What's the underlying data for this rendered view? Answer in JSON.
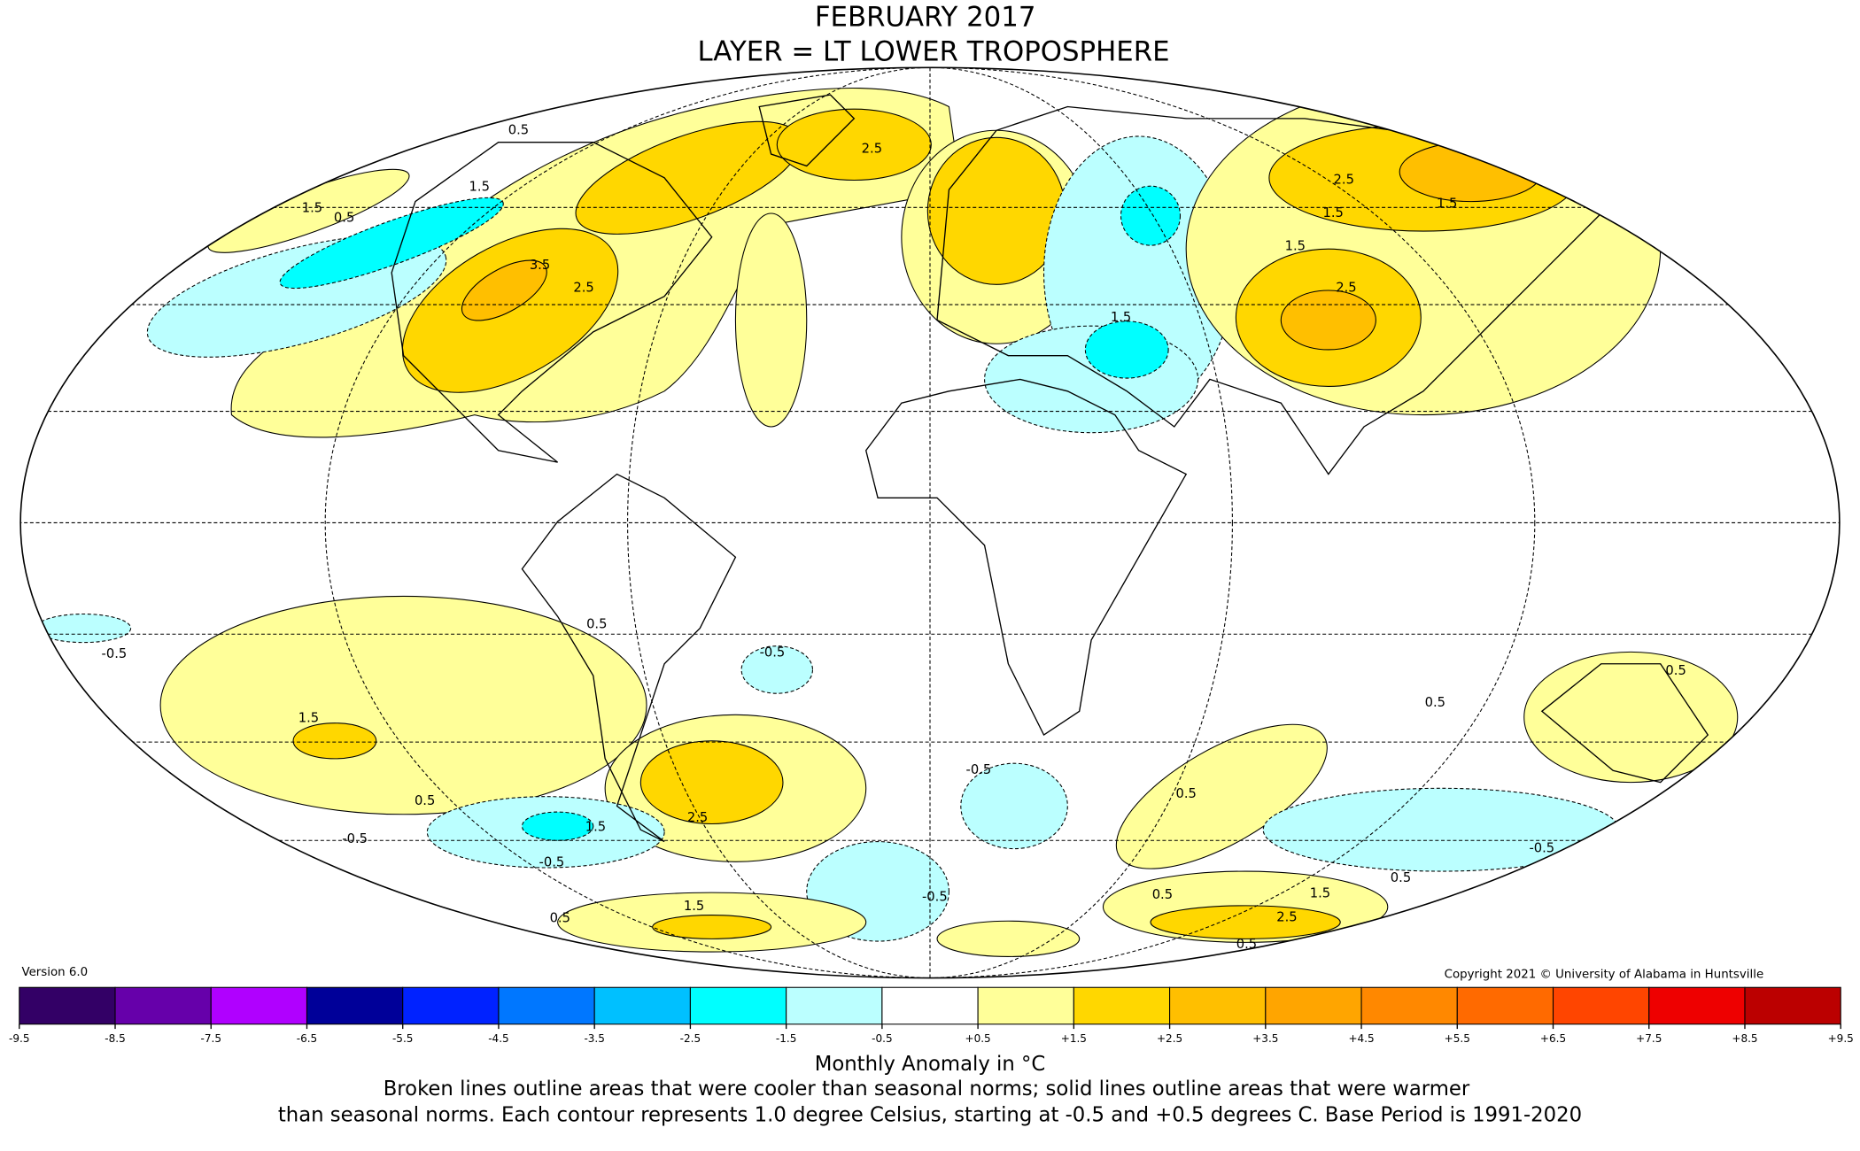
{
  "header": {
    "title_line1": "FEBRUARY 2017",
    "title_line2": "LAYER = LT LOWER TROPOSPHERE"
  },
  "map": {
    "contour_labels": [
      "3.5",
      "2.5",
      "2.5",
      "1.5",
      "0.5",
      "0.5",
      "1.5",
      "2.5",
      "1.5",
      "1.5",
      "2.5",
      "1.5",
      "2.5",
      "1.5",
      "-0.5",
      "-0.5",
      "1.5",
      "0.5",
      "-0.5",
      "-0.5",
      "1.5",
      "0.5",
      "-0.5",
      "0.5",
      "1.5",
      "0.5",
      "-0.5",
      "0.5",
      "0.5",
      "2.5",
      "1.5",
      "0.5",
      "0.5",
      "-0.5",
      "0.5"
    ]
  },
  "version": "Version 6.0",
  "copyright": "Copyright 2021 © University of Alabama in Huntsville",
  "colorbar": {
    "ticks": [
      -9.5,
      -8.5,
      -7.5,
      -6.5,
      -5.5,
      -4.5,
      -3.5,
      -2.5,
      -1.5,
      -0.5,
      {
        "value": 0.5,
        "label": "+0.5"
      },
      {
        "value": 1.5,
        "label": "+1.5"
      },
      {
        "value": 2.5,
        "label": "+2.5"
      },
      {
        "value": 3.5,
        "label": "+3.5"
      },
      {
        "value": 4.5,
        "label": "+4.5"
      },
      {
        "value": 5.5,
        "label": "+5.5"
      },
      {
        "value": 6.5,
        "label": "+6.5"
      },
      {
        "value": 7.5,
        "label": "+7.5"
      },
      {
        "value": 8.5,
        "label": "+8.5"
      },
      {
        "value": 9.5,
        "label": "+9.5"
      }
    ],
    "colors": [
      "#330066",
      "#6600aa",
      "#b000ff",
      "#000099",
      "#0022ff",
      "#0077ff",
      "#00c0ff",
      "#00ffff",
      "#bbffff",
      "#ffffff",
      "#ffff99",
      "#ffd700",
      "#ffbf00",
      "#ffa500",
      "#ff8800",
      "#ff6a00",
      "#ff4500",
      "#ee0000",
      "#bb0000"
    ],
    "title": "Monthly Anomaly in °C"
  },
  "footer": {
    "line1": "Broken lines outline areas that were cooler than seasonal norms; solid lines outline areas that were warmer",
    "line2": "than seasonal norms. Each contour represents 1.0 degree Celsius, starting at -0.5 and +0.5 degrees C. Base Period is 1991-2020"
  }
}
